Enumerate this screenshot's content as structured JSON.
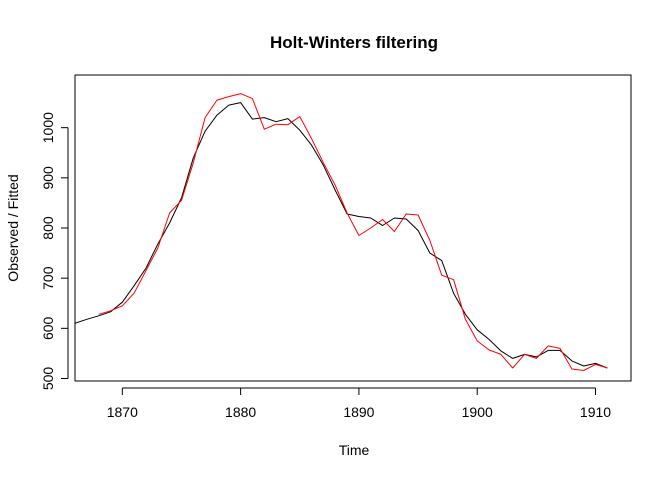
{
  "chart_data": {
    "type": "line",
    "title": "Holt-Winters filtering",
    "xlabel": "Time",
    "ylabel": "Observed / Fitted",
    "xlim": [
      1866,
      1913
    ],
    "ylim": [
      495,
      1105
    ],
    "x_ticks": [
      1870,
      1880,
      1890,
      1900,
      1910
    ],
    "y_ticks": [
      500,
      600,
      700,
      800,
      900,
      1000
    ],
    "grid": false,
    "legend": "none",
    "series": [
      {
        "color": "#000000",
        "x": [
          1866,
          1867,
          1868,
          1869,
          1870,
          1871,
          1872,
          1873,
          1874,
          1875,
          1876,
          1877,
          1878,
          1879,
          1880,
          1881,
          1882,
          1883,
          1884,
          1885,
          1886,
          1887,
          1888,
          1889,
          1890,
          1891,
          1892,
          1893,
          1894,
          1895,
          1896,
          1897,
          1898,
          1899,
          1900,
          1901,
          1902,
          1903,
          1904,
          1905,
          1906,
          1907,
          1908,
          1909,
          1910,
          1911
        ],
        "values": [
          610,
          618,
          625,
          633,
          652,
          685,
          720,
          768,
          810,
          860,
          940,
          993,
          1025,
          1045,
          1050,
          1017,
          1020,
          1012,
          1018,
          995,
          965,
          925,
          875,
          828,
          823,
          820,
          805,
          820,
          818,
          795,
          750,
          735,
          670,
          628,
          597,
          578,
          555,
          540,
          548,
          543,
          556,
          556,
          535,
          525,
          530,
          521
        ]
      },
      {
        "color": "#ff0000",
        "x": [
          1868,
          1869,
          1870,
          1871,
          1872,
          1873,
          1874,
          1875,
          1876,
          1877,
          1878,
          1879,
          1880,
          1881,
          1882,
          1883,
          1884,
          1885,
          1886,
          1887,
          1888,
          1889,
          1890,
          1891,
          1892,
          1893,
          1894,
          1895,
          1896,
          1897,
          1898,
          1899,
          1900,
          1901,
          1902,
          1903,
          1904,
          1905,
          1906,
          1907,
          1908,
          1909,
          1910,
          1911
        ],
        "values": [
          628,
          635,
          645,
          670,
          715,
          760,
          830,
          855,
          930,
          1020,
          1055,
          1062,
          1068,
          1058,
          997,
          1007,
          1006,
          1022,
          978,
          930,
          885,
          830,
          785,
          800,
          817,
          793,
          828,
          826,
          775,
          706,
          697,
          618,
          575,
          557,
          548,
          521,
          548,
          540,
          565,
          560,
          519,
          516,
          528,
          521
        ]
      }
    ]
  }
}
